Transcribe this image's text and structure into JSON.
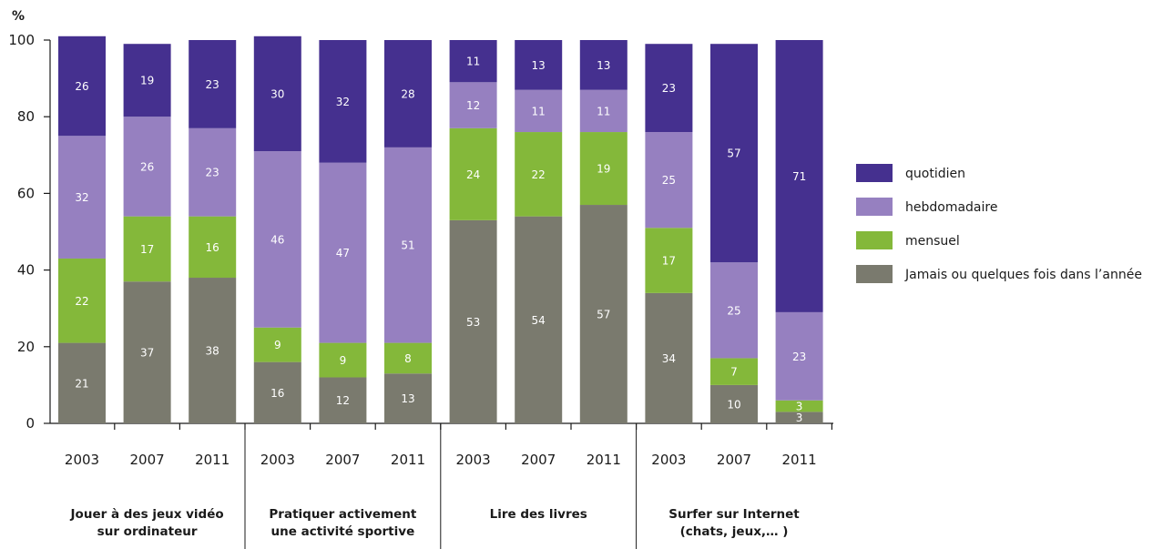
{
  "chart_data": {
    "type": "bar",
    "stacked": true,
    "y_unit": "%",
    "ylim": [
      0,
      100
    ],
    "yticks": [
      "0",
      "20",
      "40",
      "60",
      "80",
      "100"
    ],
    "groups": [
      {
        "label_lines": [
          "Jouer à des jeux vidéo",
          "sur ordinateur"
        ],
        "years": [
          "2003",
          "2007",
          "2011"
        ]
      },
      {
        "label_lines": [
          "Pratiquer activement",
          "une activité sportive"
        ],
        "years": [
          "2003",
          "2007",
          "2011"
        ]
      },
      {
        "label_lines": [
          "Lire des livres"
        ],
        "years": [
          "2003",
          "2007",
          "2011"
        ]
      },
      {
        "label_lines": [
          "Surfer sur Internet",
          "(chats, jeux,… )"
        ],
        "years": [
          "2003",
          "2007",
          "2011"
        ]
      }
    ],
    "series": [
      {
        "name": "Jamais ou quelques fois dans l’année",
        "color": "#7a7a6e",
        "values": [
          21,
          37,
          38,
          16,
          12,
          13,
          53,
          54,
          57,
          34,
          10,
          3
        ]
      },
      {
        "name": "mensuel",
        "color": "#84b83a",
        "values": [
          22,
          17,
          16,
          9,
          9,
          8,
          24,
          22,
          19,
          17,
          7,
          3
        ]
      },
      {
        "name": "hebdomadaire",
        "color": "#9680c0",
        "values": [
          32,
          26,
          23,
          46,
          47,
          51,
          12,
          11,
          11,
          25,
          25,
          23
        ]
      },
      {
        "name": "quotidien",
        "color": "#45308f",
        "values": [
          26,
          19,
          23,
          30,
          32,
          28,
          11,
          13,
          13,
          23,
          57,
          71
        ]
      }
    ],
    "legend": {
      "position": "right",
      "order": [
        "quotidien",
        "hebdomadaire",
        "mensuel",
        "Jamais ou quelques fois dans l’année"
      ]
    }
  }
}
